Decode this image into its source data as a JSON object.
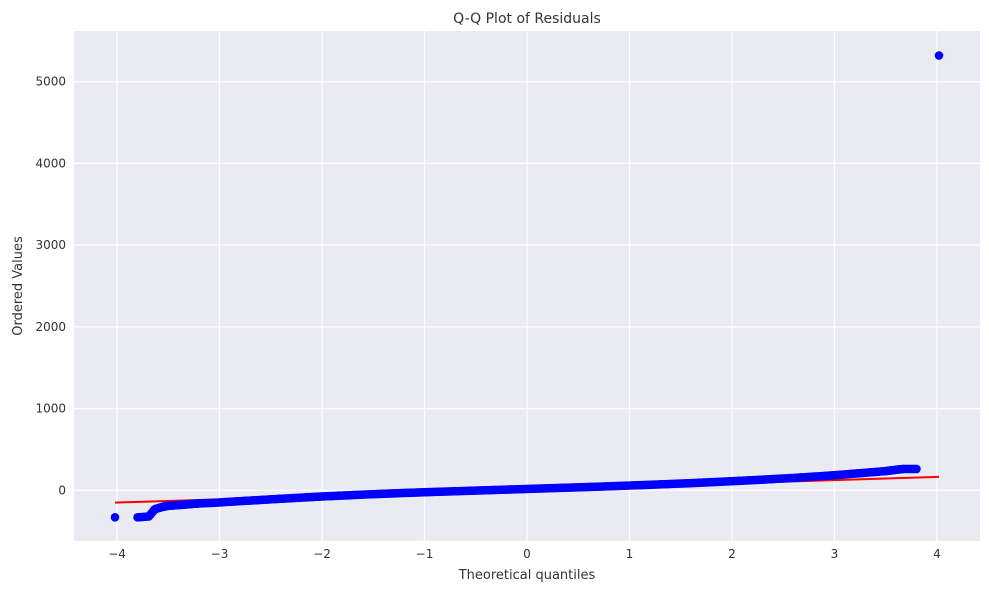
{
  "chart_data": {
    "type": "scatter",
    "title": "Q-Q Plot of Residuals",
    "xlabel": "Theoretical quantiles",
    "ylabel": "Ordered Values",
    "xlim": [
      -4.42,
      4.42
    ],
    "ylim": [
      -620,
      5620
    ],
    "grid": true,
    "x_ticks": [
      -4,
      -3,
      -2,
      -1,
      0,
      1,
      2,
      3,
      4
    ],
    "x_tick_labels": [
      "−4",
      "−3",
      "−2",
      "−1",
      "0",
      "1",
      "2",
      "3",
      "4"
    ],
    "y_ticks": [
      0,
      1000,
      2000,
      3000,
      4000,
      5000
    ],
    "y_tick_labels": [
      "0",
      "1000",
      "2000",
      "3000",
      "4000",
      "5000"
    ],
    "series": [
      {
        "kind": "points",
        "color": "#0000ff",
        "points": [
          [
            -4.02,
            -330
          ],
          [
            -3.8,
            -330
          ],
          [
            -3.69,
            -320
          ],
          [
            -3.63,
            -230
          ],
          [
            -3.59,
            -215
          ],
          [
            -3.55,
            -200
          ],
          [
            -3.5,
            -190
          ],
          [
            -3.45,
            -185
          ],
          [
            -3.4,
            -180
          ],
          [
            -3.35,
            -175
          ],
          [
            -3.3,
            -170
          ],
          [
            -3.25,
            -165
          ],
          [
            -3.2,
            -160
          ],
          [
            -3.1,
            -155
          ],
          [
            -3.0,
            -148
          ],
          [
            -2.9,
            -140
          ],
          [
            -2.8,
            -132
          ],
          [
            -2.7,
            -125
          ],
          [
            -2.6,
            -118
          ],
          [
            -2.5,
            -110
          ],
          [
            -2.4,
            -103
          ],
          [
            -2.3,
            -96
          ],
          [
            -2.2,
            -89
          ],
          [
            -2.1,
            -82
          ],
          [
            -2.0,
            -75
          ],
          [
            -1.9,
            -70
          ],
          [
            -1.8,
            -64
          ],
          [
            -1.7,
            -58
          ],
          [
            -1.6,
            -52
          ],
          [
            -1.5,
            -47
          ],
          [
            -1.4,
            -42
          ],
          [
            -1.3,
            -37
          ],
          [
            -1.2,
            -32
          ],
          [
            -1.1,
            -28
          ],
          [
            -1.0,
            -23
          ],
          [
            -0.9,
            -19
          ],
          [
            -0.8,
            -15
          ],
          [
            -0.7,
            -11
          ],
          [
            -0.6,
            -7
          ],
          [
            -0.5,
            -3
          ],
          [
            -0.4,
            1
          ],
          [
            -0.3,
            5
          ],
          [
            -0.2,
            9
          ],
          [
            -0.1,
            13
          ],
          [
            0.0,
            17
          ],
          [
            0.1,
            21
          ],
          [
            0.2,
            25
          ],
          [
            0.3,
            29
          ],
          [
            0.4,
            33
          ],
          [
            0.5,
            37
          ],
          [
            0.6,
            41
          ],
          [
            0.7,
            45
          ],
          [
            0.8,
            50
          ],
          [
            0.9,
            54
          ],
          [
            1.0,
            59
          ],
          [
            1.1,
            63
          ],
          [
            1.2,
            68
          ],
          [
            1.3,
            73
          ],
          [
            1.4,
            78
          ],
          [
            1.5,
            83
          ],
          [
            1.6,
            88
          ],
          [
            1.7,
            94
          ],
          [
            1.8,
            100
          ],
          [
            1.9,
            106
          ],
          [
            2.0,
            112
          ],
          [
            2.1,
            118
          ],
          [
            2.2,
            124
          ],
          [
            2.3,
            131
          ],
          [
            2.4,
            138
          ],
          [
            2.5,
            145
          ],
          [
            2.6,
            152
          ],
          [
            2.7,
            160
          ],
          [
            2.8,
            168
          ],
          [
            2.9,
            176
          ],
          [
            3.0,
            185
          ],
          [
            3.1,
            195
          ],
          [
            3.2,
            205
          ],
          [
            3.3,
            215
          ],
          [
            3.4,
            225
          ],
          [
            3.5,
            236
          ],
          [
            3.56,
            245
          ],
          [
            3.62,
            255
          ],
          [
            3.68,
            262
          ],
          [
            3.8,
            262
          ],
          [
            4.02,
            5320
          ]
        ]
      },
      {
        "kind": "line",
        "color": "#ff0000",
        "points": [
          [
            -4.02,
            -150
          ],
          [
            4.02,
            165
          ]
        ]
      }
    ]
  }
}
